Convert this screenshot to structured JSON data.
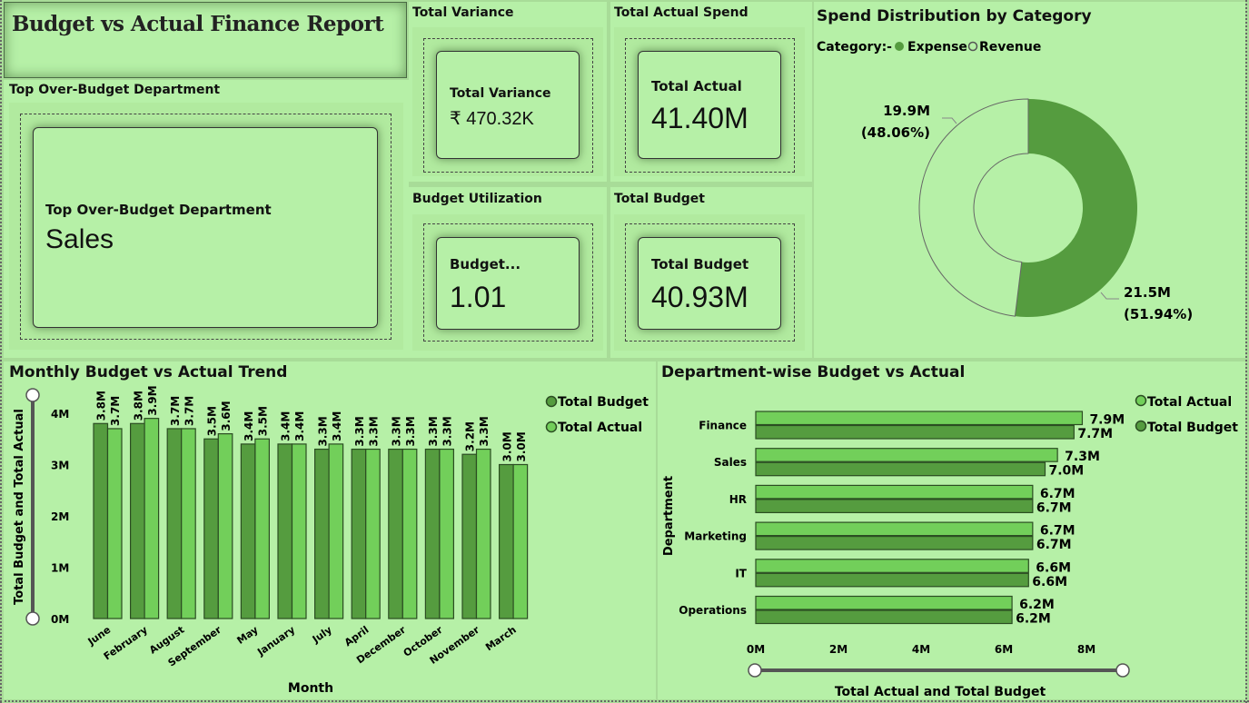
{
  "report": {
    "title": "Budget vs Actual Finance Report"
  },
  "top_dept": {
    "header": "Top Over-Budget Department",
    "label": "Top Over-Budget Department",
    "value": "Sales"
  },
  "kpis": {
    "total_variance": {
      "header": "Total Variance",
      "label": "Total Variance",
      "value": "₹ 470.32K"
    },
    "total_actual": {
      "header": "Total Actual Spend",
      "label": "Total Actual",
      "value": "41.40M"
    },
    "budget_util": {
      "header": "Budget Utilization",
      "label": "Budget...",
      "value": "1.01"
    },
    "total_budget": {
      "header": "Total Budget",
      "label": "Total Budget",
      "value": "40.93M"
    }
  },
  "colors": {
    "background": "#b6f0a7",
    "dark_green": "#559c3f",
    "bright_green": "#72cf5a"
  },
  "chart_data": [
    {
      "id": "spend-distribution",
      "type": "pie",
      "title": "Spend Distribution by Category",
      "legend_title": "Category:-",
      "legend_position": "top-left",
      "slices": [
        {
          "name": "Expense",
          "value": 21.5,
          "label": "21.5M",
          "pct_label": "(51.94%)",
          "percent": 51.94,
          "color": "#559c3f"
        },
        {
          "name": "Revenue",
          "value": 19.9,
          "label": "19.9M",
          "pct_label": "(48.06%)",
          "percent": 48.06,
          "color": "#b6f0a7"
        }
      ]
    },
    {
      "id": "monthly-trend",
      "type": "bar",
      "title": "Monthly Budget vs Actual Trend",
      "xlabel": "Month",
      "ylabel": "Total Budget and Total Actual",
      "ylim": [
        0,
        4
      ],
      "yticks": [
        "0M",
        "1M",
        "2M",
        "3M",
        "4M"
      ],
      "legend_position": "top-right",
      "categories": [
        "June",
        "February",
        "August",
        "September",
        "May",
        "January",
        "July",
        "April",
        "December",
        "October",
        "November",
        "March"
      ],
      "series": [
        {
          "name": "Total Budget",
          "color": "#559c3f",
          "values": [
            3.8,
            3.8,
            3.7,
            3.5,
            3.4,
            3.4,
            3.3,
            3.3,
            3.3,
            3.3,
            3.2,
            3.0
          ],
          "labels": [
            "3.8M",
            "3.8M",
            "3.7M",
            "3.5M",
            "3.4M",
            "3.4M",
            "3.3M",
            "3.3M",
            "3.3M",
            "3.3M",
            "3.2M",
            "3.0M"
          ]
        },
        {
          "name": "Total Actual",
          "color": "#72cf5a",
          "values": [
            3.7,
            3.9,
            3.7,
            3.6,
            3.5,
            3.4,
            3.4,
            3.3,
            3.3,
            3.3,
            3.3,
            3.0
          ],
          "labels": [
            "3.7M",
            "3.9M",
            "3.7M",
            "3.6M",
            "3.5M",
            "3.4M",
            "3.4M",
            "3.3M",
            "3.3M",
            "3.3M",
            "3.3M",
            "3.0M"
          ]
        }
      ]
    },
    {
      "id": "department-budget",
      "type": "bar",
      "orientation": "horizontal",
      "title": "Department-wise Budget vs Actual",
      "xlabel": "Total Actual and Total Budget",
      "ylabel": "Department",
      "xlim": [
        0,
        8
      ],
      "xticks": [
        "0M",
        "2M",
        "4M",
        "6M",
        "8M"
      ],
      "legend_position": "top-right",
      "categories": [
        "Finance",
        "Sales",
        "HR",
        "Marketing",
        "IT",
        "Operations"
      ],
      "series": [
        {
          "name": "Total Actual",
          "color": "#72cf5a",
          "values": [
            7.9,
            7.3,
            6.7,
            6.7,
            6.6,
            6.2
          ],
          "labels": [
            "7.9M",
            "7.3M",
            "6.7M",
            "6.7M",
            "6.6M",
            "6.2M"
          ]
        },
        {
          "name": "Total Budget",
          "color": "#559c3f",
          "values": [
            7.7,
            7.0,
            6.7,
            6.7,
            6.6,
            6.2
          ],
          "labels": [
            "7.7M",
            "7.0M",
            "6.7M",
            "6.7M",
            "6.6M",
            "6.2M"
          ]
        }
      ]
    }
  ]
}
